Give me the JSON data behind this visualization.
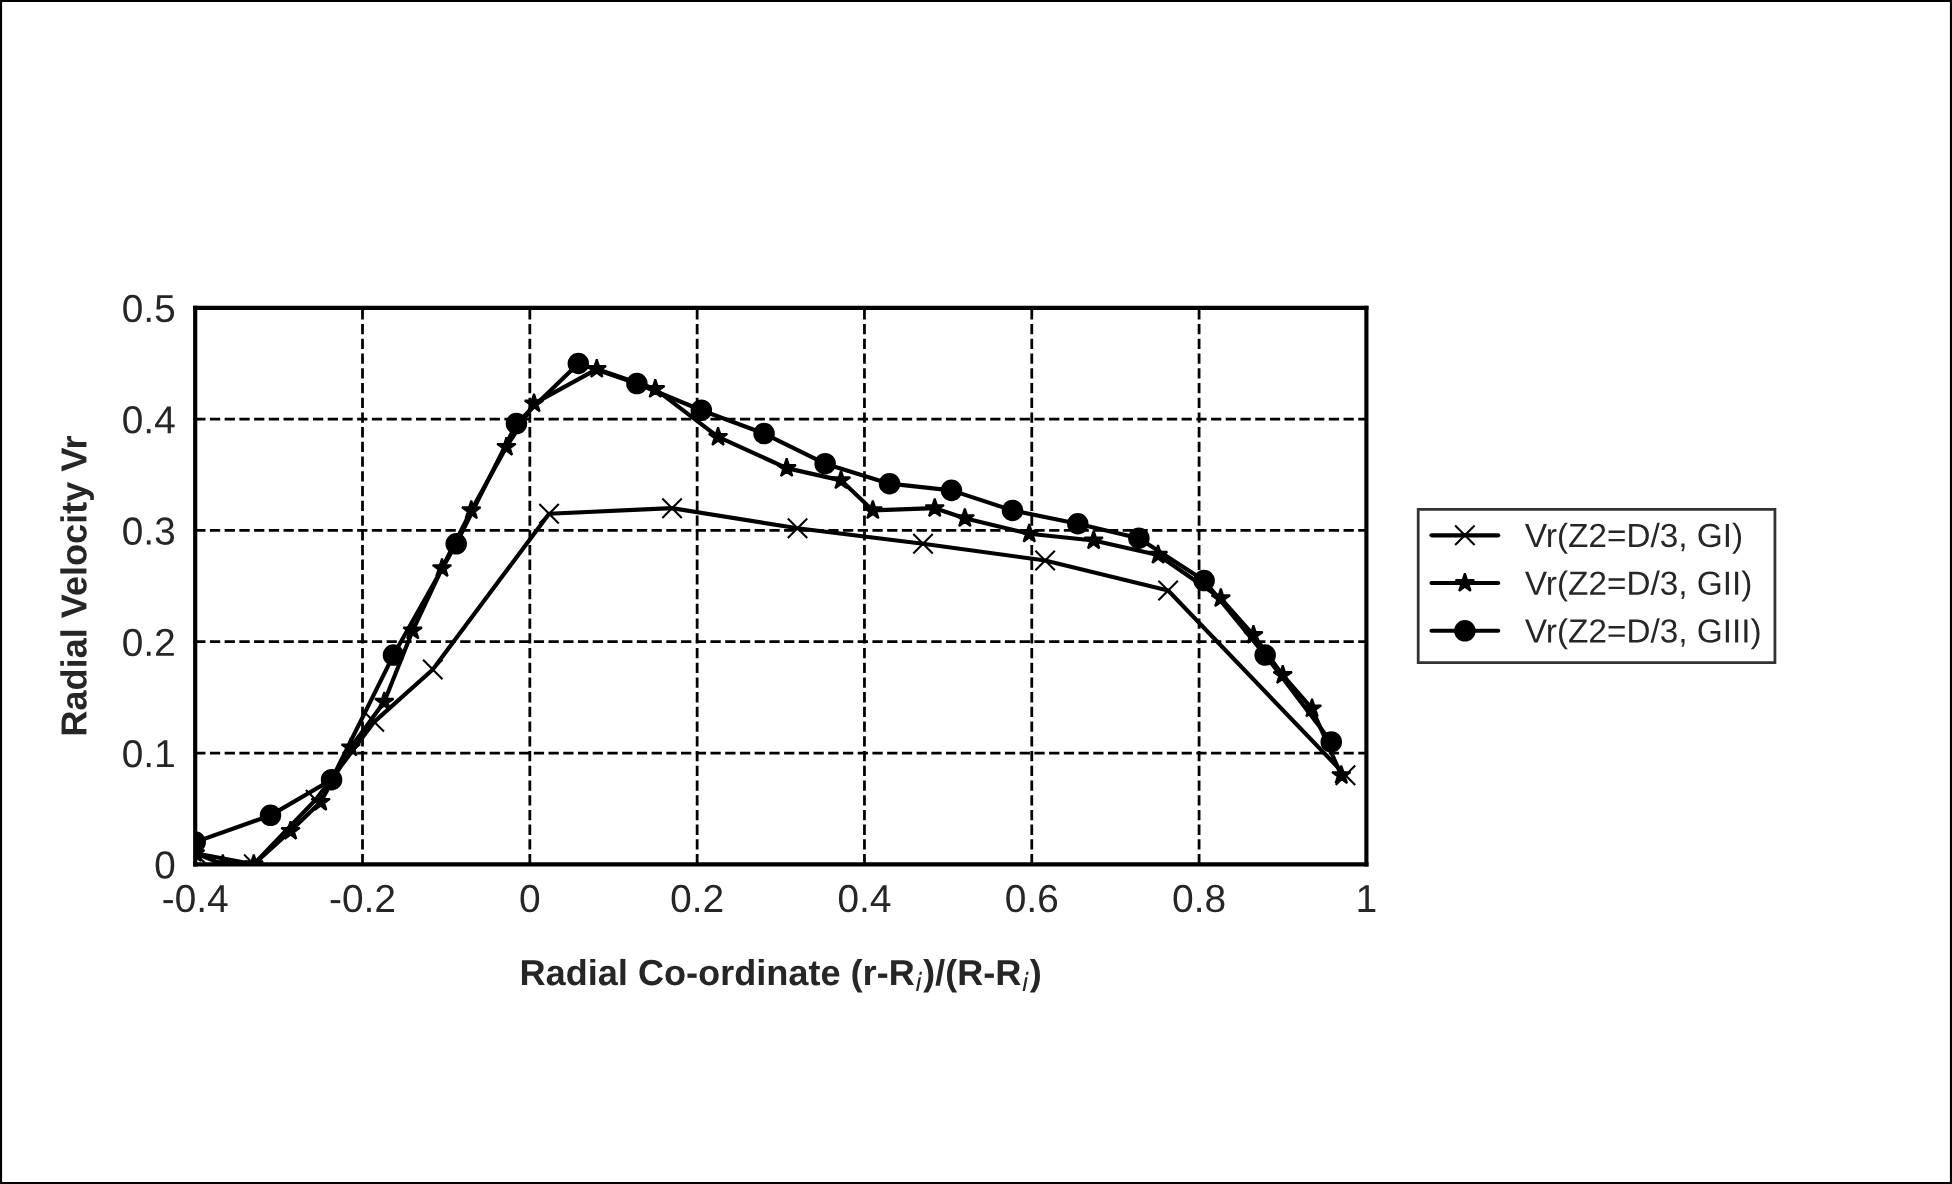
{
  "chart_data": {
    "type": "line",
    "xlabel": "Radial Co-ordinate (r-R$_{i}$)/(R-R$_{i}$)",
    "ylabel": "Radial Velocity Vr",
    "xlim": [
      -0.4,
      1
    ],
    "ylim": [
      0,
      0.5
    ],
    "xticks": [
      {
        "value": -0.4,
        "label": "-0.4"
      },
      {
        "value": -0.2,
        "label": "-0.2"
      },
      0,
      0.2,
      0.4,
      0.6,
      0.8,
      1
    ],
    "yticks": [
      0,
      0.1,
      0.2,
      0.3,
      0.4,
      0.5
    ],
    "grid": true,
    "legend": "right",
    "line_style": "solid",
    "series": [
      {
        "name": "Vr(Z2=D/3, GI)",
        "color": "#000000",
        "marker": "cross",
        "x": [
          -0.4,
          -0.33,
          -0.256,
          -0.186,
          -0.116,
          0.023,
          0.17,
          0.32,
          0.47,
          0.616,
          0.763,
          0.975
        ],
        "values": [
          0.01,
          0,
          0.058,
          0.128,
          0.175,
          0.315,
          0.32,
          0.302,
          0.288,
          0.273,
          0.246,
          0.08
        ]
      },
      {
        "name": "Vr(Z2=D/3, GII)",
        "color": "#000000",
        "marker": "star",
        "x": [
          -0.4,
          -0.367,
          -0.33,
          -0.286,
          -0.25,
          -0.214,
          -0.174,
          -0.14,
          -0.105,
          -0.07,
          -0.028,
          0.005,
          0.08,
          0.15,
          0.225,
          0.307,
          0.372,
          0.41,
          0.484,
          0.52,
          0.597,
          0.674,
          0.751,
          0.826,
          0.865,
          0.9,
          0.935,
          0.97
        ],
        "values": [
          0.01,
          0,
          0,
          0.03,
          0.056,
          0.105,
          0.146,
          0.21,
          0.266,
          0.318,
          0.375,
          0.414,
          0.445,
          0.427,
          0.384,
          0.356,
          0.345,
          0.318,
          0.32,
          0.311,
          0.297,
          0.291,
          0.278,
          0.239,
          0.206,
          0.17,
          0.14,
          0.08
        ]
      },
      {
        "name": "Vr(Z2=D/3, GIII)",
        "color": "#000000",
        "marker": "circle",
        "x": [
          -0.4,
          -0.31,
          -0.237,
          -0.163,
          -0.088,
          -0.016,
          0.058,
          0.128,
          0.205,
          0.28,
          0.353,
          0.43,
          0.504,
          0.577,
          0.655,
          0.728,
          0.806,
          0.879,
          0.958
        ],
        "values": [
          0.02,
          0.044,
          0.076,
          0.188,
          0.288,
          0.396,
          0.45,
          0.432,
          0.408,
          0.387,
          0.36,
          0.342,
          0.336,
          0.318,
          0.306,
          0.293,
          0.255,
          0.188,
          0.11
        ]
      }
    ]
  }
}
